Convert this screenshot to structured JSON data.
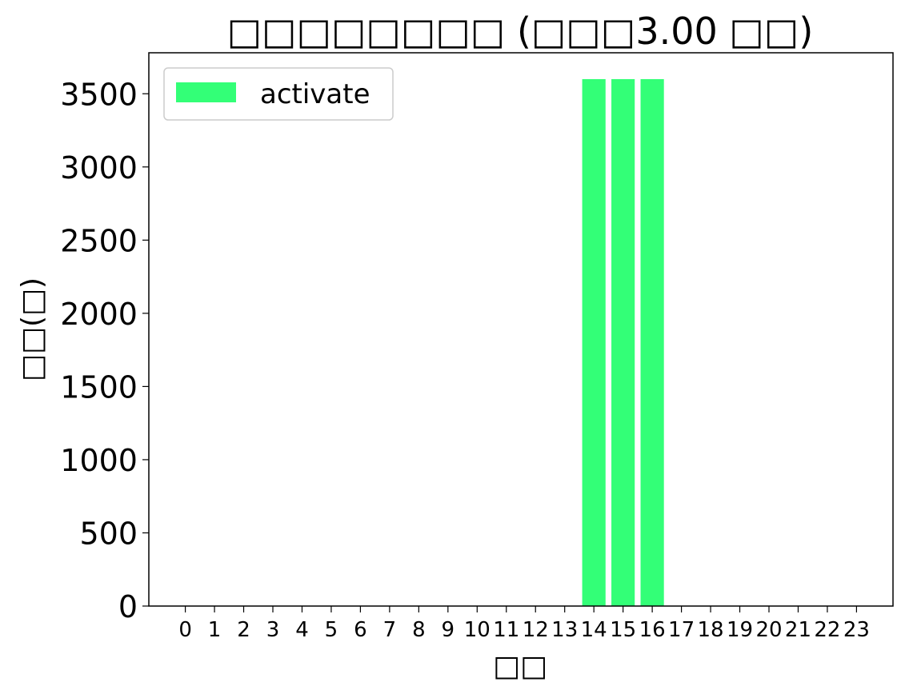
{
  "chart_data": {
    "type": "bar",
    "title": "□□□□□□□□ (□□□3.00 □□)",
    "xlabel": "□□",
    "ylabel": "□□(□)",
    "categories": [
      "0",
      "1",
      "2",
      "3",
      "4",
      "5",
      "6",
      "7",
      "8",
      "9",
      "10",
      "11",
      "12",
      "13",
      "14",
      "15",
      "16",
      "17",
      "18",
      "19",
      "20",
      "21",
      "22",
      "23"
    ],
    "series": [
      {
        "name": "activate",
        "color": "#33ff77",
        "values": [
          0,
          0,
          0,
          0,
          0,
          0,
          0,
          0,
          0,
          0,
          0,
          0,
          0,
          0,
          3600,
          3600,
          3600,
          0,
          0,
          0,
          0,
          0,
          0,
          0
        ]
      }
    ],
    "yticks": [
      0,
      500,
      1000,
      1500,
      2000,
      2500,
      3000,
      3500
    ],
    "ylim": [
      0,
      3780
    ],
    "xlim": [
      -1.25,
      24.25
    ],
    "grid": false,
    "legend_position": "top-left"
  }
}
